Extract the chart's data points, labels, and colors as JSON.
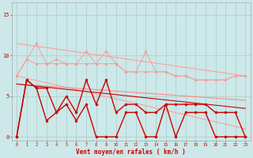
{
  "x": [
    0,
    1,
    2,
    3,
    4,
    5,
    6,
    7,
    8,
    9,
    10,
    11,
    12,
    13,
    14,
    15,
    16,
    17,
    18,
    19,
    20,
    21,
    22,
    23
  ],
  "wind_avg": [
    0,
    7,
    6,
    2,
    3,
    4,
    2,
    4,
    0,
    0,
    0,
    3,
    3,
    0,
    0,
    4,
    0,
    3,
    3,
    3,
    0,
    0,
    0,
    0
  ],
  "wind_gust": [
    0,
    7,
    6,
    6,
    3,
    5,
    3,
    7,
    4,
    7,
    3,
    4,
    4,
    3,
    3,
    4,
    4,
    4,
    4,
    4,
    3,
    3,
    3,
    0
  ],
  "rafale_upper": [
    7.5,
    9.5,
    11.5,
    9.0,
    9.5,
    9.0,
    9.0,
    10.5,
    9.0,
    10.5,
    9.0,
    8.0,
    8.0,
    10.5,
    8.0,
    8.0,
    7.5,
    7.5,
    7.0,
    7.0,
    7.0,
    7.0,
    7.5,
    7.5
  ],
  "rafale_lower": [
    7.5,
    9.5,
    9.0,
    9.0,
    9.0,
    9.0,
    9.0,
    9.0,
    9.0,
    9.0,
    9.0,
    8.0,
    8.0,
    8.0,
    8.0,
    8.0,
    7.5,
    7.5,
    7.0,
    7.0,
    7.0,
    7.0,
    7.5,
    7.5
  ],
  "trend1_x": [
    0,
    23
  ],
  "trend1_y": [
    11.5,
    7.5
  ],
  "trend2_x": [
    0,
    23
  ],
  "trend2_y": [
    7.5,
    1.0
  ],
  "trend3_x": [
    0,
    23
  ],
  "trend3_y": [
    6.5,
    4.5
  ],
  "trend4_x": [
    0,
    23
  ],
  "trend4_y": [
    6.5,
    3.5
  ],
  "bg_color": "#cce8e8",
  "grid_color": "#aacccc",
  "dark_red": "#cc0000",
  "light_pink": "#ff9999",
  "mid_pink": "#ff8888",
  "xlabel": "Vent moyen/en rafales ( km/h )",
  "xlim": [
    -0.5,
    23.5
  ],
  "ylim": [
    -0.5,
    16.5
  ],
  "yticks": [
    0,
    5,
    10,
    15
  ],
  "figw": 3.2,
  "figh": 2.0,
  "dpi": 100
}
